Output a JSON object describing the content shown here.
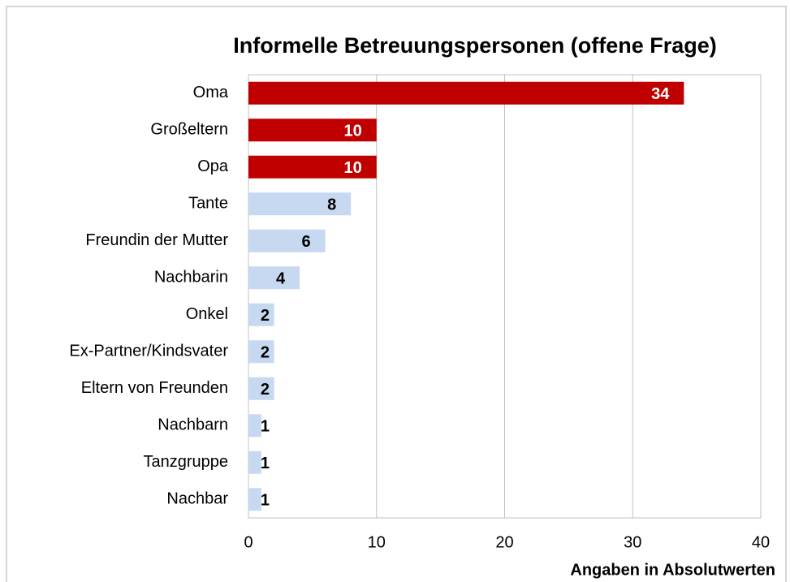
{
  "chart_data": {
    "type": "barh",
    "title": "Informelle Betreuungspersonen (offene Frage)",
    "x_label": "Angaben in Absolutwerten",
    "categories": [
      "Oma",
      "Großeltern",
      "Opa",
      "Tante",
      "Freundin der Mutter",
      "Nachbarin",
      "Onkel",
      "Ex-Partner/Kindsvater",
      "Eltern von Freunden",
      "Nachbarn",
      "Tanzgruppe",
      "Nachbar"
    ],
    "values": [
      34,
      10,
      10,
      8,
      6,
      4,
      2,
      2,
      2,
      1,
      1,
      1
    ],
    "colors": [
      "#c00000",
      "#c00000",
      "#c00000",
      "#c6d9f1",
      "#c6d9f1",
      "#c6d9f1",
      "#c6d9f1",
      "#c6d9f1",
      "#c6d9f1",
      "#c6d9f1",
      "#c6d9f1",
      "#c6d9f1"
    ],
    "value_label_colors": [
      "#ffffff",
      "#ffffff",
      "#ffffff",
      "#000000",
      "#000000",
      "#000000",
      "#000000",
      "#000000",
      "#000000",
      "#000000",
      "#000000",
      "#000000"
    ],
    "xlim": [
      0,
      40
    ],
    "xticks": [
      0,
      10,
      20,
      30,
      40
    ],
    "grid": true
  }
}
